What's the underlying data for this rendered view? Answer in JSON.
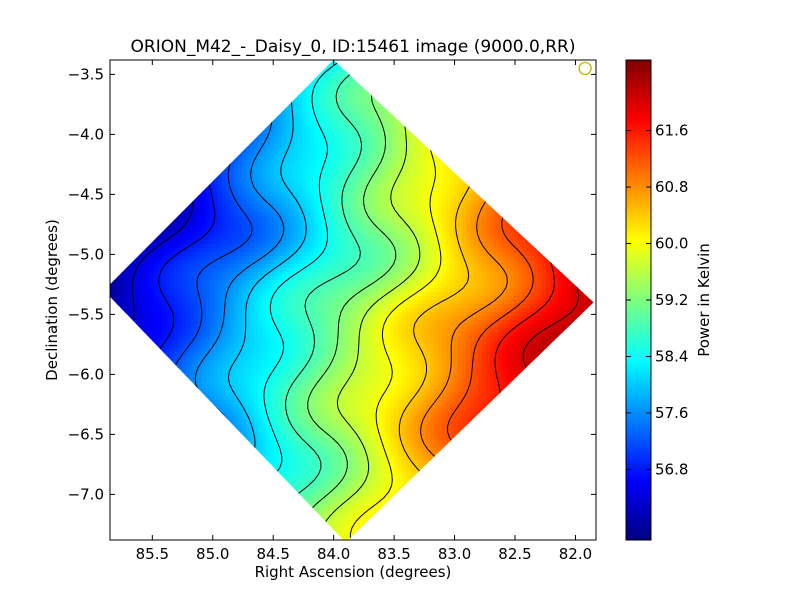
{
  "chart_data": {
    "type": "heatmap",
    "title": "ORION_M42_-_Daisy_0, ID:15461 image (9000.0,RR)",
    "xlabel": "Right Ascension (degrees)",
    "ylabel": "Declination (degrees)",
    "xlim": [
      85.85,
      81.83
    ],
    "ylim": [
      -7.38,
      -3.38
    ],
    "x_ticks": [
      85.5,
      85.0,
      84.5,
      84.0,
      83.5,
      83.0,
      82.5,
      82.0
    ],
    "x_tick_labels": [
      "85.5",
      "85.0",
      "84.5",
      "84.0",
      "83.5",
      "83.0",
      "82.5",
      "82.0"
    ],
    "y_ticks": [
      -3.5,
      -4.0,
      -4.5,
      -5.0,
      -5.5,
      -6.0,
      -6.5,
      -7.0
    ],
    "y_tick_labels": [
      "−3.5",
      "−4.0",
      "−4.5",
      "−5.0",
      "−5.5",
      "−6.0",
      "−6.5",
      "−7.0"
    ],
    "coverage_region": [
      [
        84.0,
        -3.38
      ],
      [
        81.85,
        -5.4
      ],
      [
        83.9,
        -7.4
      ],
      [
        85.9,
        -5.3
      ]
    ],
    "field_model": {
      "gradient_axis": "north-west to south-east",
      "min_value": 56.0,
      "max_value": 62.4,
      "min_location": [
        85.7,
        -5.0
      ],
      "max_location": [
        82.0,
        -5.8
      ]
    },
    "contour_levels": [
      56.4,
      56.8,
      57.2,
      57.6,
      58.0,
      58.4,
      58.8,
      59.2,
      59.6,
      60.0,
      60.4,
      60.8,
      61.2,
      61.6,
      62.0
    ],
    "beam_marker": {
      "x": 81.92,
      "y": -3.45
    },
    "colorbar": {
      "label": "Power in Kelvin",
      "vmin": 55.8,
      "vmax": 62.6,
      "ticks": [
        56.8,
        57.6,
        58.4,
        59.2,
        60.0,
        60.8,
        61.6
      ],
      "tick_labels": [
        "56.8",
        "57.6",
        "58.4",
        "59.2",
        "60.0",
        "60.8",
        "61.6"
      ],
      "colormap": "jet",
      "colors": [
        "#00007f",
        "#0000ff",
        "#007fff",
        "#00ffff",
        "#7fff7f",
        "#ffff00",
        "#ff7f00",
        "#ff0000",
        "#7f0000"
      ]
    },
    "beam_color": "#bfbf00"
  }
}
